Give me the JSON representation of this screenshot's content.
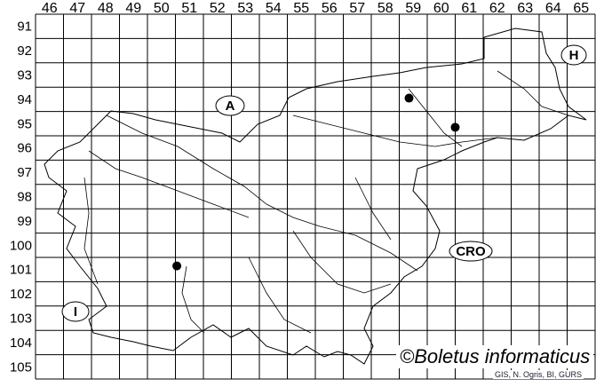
{
  "map": {
    "columns": [
      "46",
      "47",
      "48",
      "49",
      "50",
      "51",
      "52",
      "53",
      "54",
      "55",
      "56",
      "57",
      "58",
      "59",
      "60",
      "61",
      "62",
      "63",
      "64",
      "65"
    ],
    "rows": [
      "91",
      "92",
      "93",
      "94",
      "95",
      "96",
      "97",
      "98",
      "99",
      "100",
      "101",
      "102",
      "103",
      "104",
      "105"
    ],
    "country_labels": [
      {
        "id": "austria",
        "text": "A"
      },
      {
        "id": "hungary",
        "text": "H"
      },
      {
        "id": "croatia",
        "text": "CRO"
      },
      {
        "id": "italy",
        "text": "I"
      }
    ],
    "records": [
      {
        "col": "59",
        "row": "94"
      },
      {
        "col": "61",
        "row": "95"
      },
      {
        "col": "51",
        "row": "101"
      }
    ],
    "colors": {
      "grid": "#000000",
      "border": "#000000",
      "dot": "#000000"
    }
  },
  "copyright": "©Boletus informaticus",
  "credit": "GIS, N. Ogris, BI, GURS"
}
